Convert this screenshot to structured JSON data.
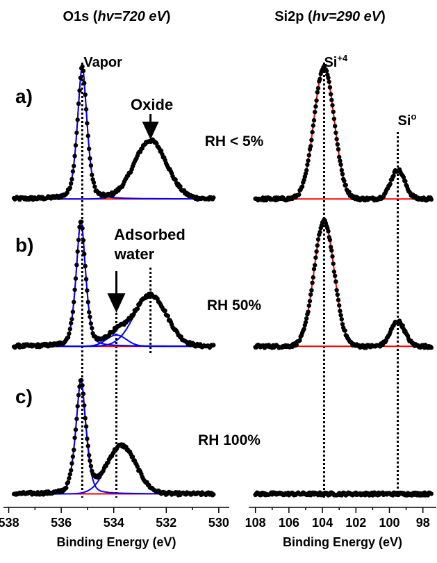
{
  "figure": {
    "row_labels": [
      "a)",
      "b)",
      "c)"
    ],
    "condition_labels": [
      "RH < 5%",
      "RH 50%",
      "RH 100%"
    ],
    "colors": {
      "data_points": "#000000",
      "envelope": "#ff0000",
      "component": "#0000ff",
      "marker_line": "#000000"
    }
  },
  "chart_data": [
    {
      "type": "scatter",
      "id": "o1s",
      "title_main": "O1s (",
      "title_italic": "hv=720 eV",
      "title_close": ")",
      "xlabel": "Binding Energy (eV)",
      "x_reversed": true,
      "xlim": [
        538.2,
        529.6
      ],
      "xticks": [
        538,
        536,
        534,
        532,
        530
      ],
      "marker_lines": [
        {
          "x": 535.2,
          "label": "Vapor"
        },
        {
          "x": 533.9,
          "label": ""
        },
        {
          "x": 532.6,
          "label": ""
        }
      ],
      "annotations": [
        {
          "text": "Oxide",
          "arrow_x": 532.6,
          "panel": 0
        },
        {
          "text": "Adsorbed",
          "text2": "water",
          "arrow_x": 533.9,
          "panel": 1
        }
      ],
      "panels": [
        {
          "label": "a)",
          "x_range": [
            537.8,
            530.2
          ],
          "baseline": 0.02,
          "noise": 0.012,
          "components": [
            {
              "name": "vapor",
              "center": 535.2,
              "height": 1.0,
              "sigma": 0.2,
              "gamma": 0.18
            },
            {
              "name": "oxide",
              "center": 532.6,
              "height": 0.44,
              "sigma": 0.62,
              "gamma": 0.0
            }
          ]
        },
        {
          "label": "b)",
          "x_range": [
            537.8,
            530.2
          ],
          "baseline": 0.01,
          "noise": 0.012,
          "components": [
            {
              "name": "vapor",
              "center": 535.25,
              "height": 1.0,
              "sigma": 0.2,
              "gamma": 0.18
            },
            {
              "name": "adsorbed-water",
              "center": 533.9,
              "height": 0.09,
              "sigma": 0.38,
              "gamma": 0.0
            },
            {
              "name": "oxide",
              "center": 532.6,
              "height": 0.41,
              "sigma": 0.62,
              "gamma": 0.0
            }
          ]
        },
        {
          "label": "c)",
          "x_range": [
            537.8,
            530.2
          ],
          "baseline": 0.02,
          "noise": 0.012,
          "components": [
            {
              "name": "vapor",
              "center": 535.25,
              "height": 0.95,
              "sigma": 0.22,
              "gamma": 0.18
            },
            {
              "name": "adsorbed-water",
              "center": 533.7,
              "height": 0.4,
              "sigma": 0.55,
              "gamma": 0.0
            }
          ]
        }
      ]
    },
    {
      "type": "scatter",
      "id": "si2p",
      "title_main": "Si2p (",
      "title_italic": "hv=290 eV",
      "title_close": ")",
      "xlabel": "Binding Energy (eV)",
      "x_reversed": true,
      "xlim": [
        108.4,
        97.2
      ],
      "xticks": [
        108,
        106,
        104,
        102,
        100,
        98
      ],
      "marker_lines": [
        {
          "x": 103.9,
          "label": "Si",
          "label_sup": "+4"
        },
        {
          "x": 99.5,
          "label": "Si",
          "label_sup": "o"
        }
      ],
      "annotations": [],
      "panels": [
        {
          "label": "a)",
          "x_range": [
            108.0,
            97.5
          ],
          "baseline": 0.02,
          "noise": 0.012,
          "components": [
            {
              "name": "si4",
              "center": 103.9,
              "height": 1.0,
              "sigma": 0.6,
              "gamma": 0.0
            },
            {
              "name": "si0",
              "center": 99.5,
              "height": 0.22,
              "sigma": 0.42,
              "gamma": 0.0
            }
          ]
        },
        {
          "label": "b)",
          "x_range": [
            108.0,
            97.5
          ],
          "baseline": 0.01,
          "noise": 0.012,
          "components": [
            {
              "name": "si4",
              "center": 103.9,
              "height": 1.0,
              "sigma": 0.6,
              "gamma": 0.0
            },
            {
              "name": "si0",
              "center": 99.5,
              "height": 0.2,
              "sigma": 0.42,
              "gamma": 0.0
            }
          ]
        },
        {
          "label": "c)",
          "x_range": [
            108.0,
            97.5
          ],
          "baseline": 0.02,
          "noise": 0.012,
          "components": []
        }
      ]
    }
  ]
}
